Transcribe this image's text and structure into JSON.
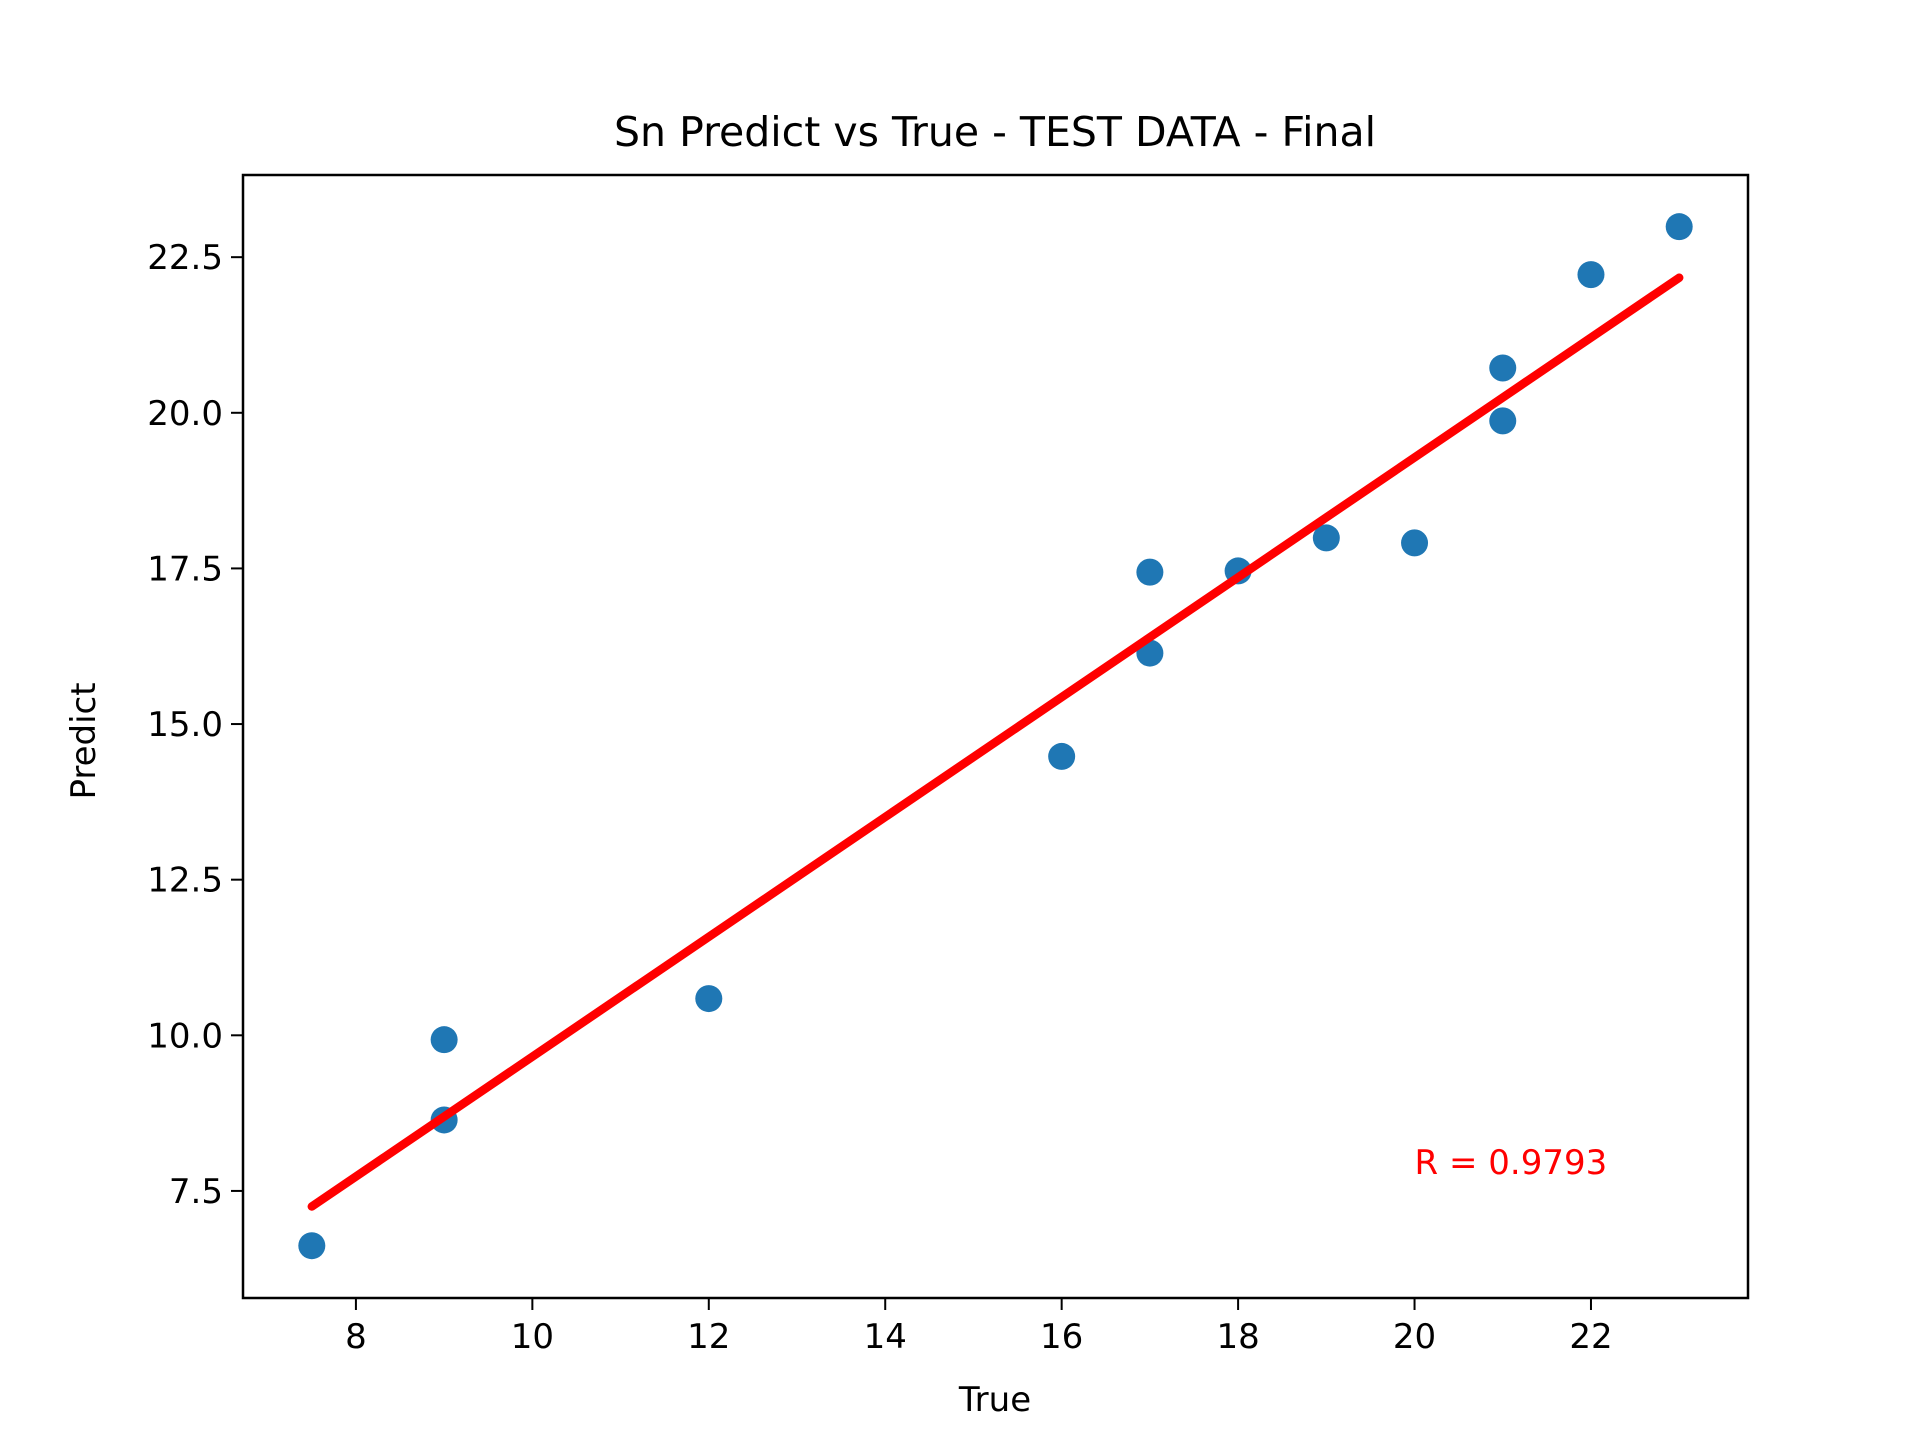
{
  "chart_data": {
    "type": "scatter",
    "title": "Sn Predict vs True - TEST DATA - Final",
    "xlabel": "True",
    "ylabel": "Predict",
    "xlim": [
      6.72,
      23.78
    ],
    "ylim": [
      5.78,
      23.82
    ],
    "xticks": [
      8,
      10,
      12,
      14,
      16,
      18,
      20,
      22
    ],
    "yticks": [
      7.5,
      10.0,
      12.5,
      15.0,
      17.5,
      20.0,
      22.5
    ],
    "xtick_labels": [
      "8",
      "10",
      "12",
      "14",
      "16",
      "18",
      "20",
      "22"
    ],
    "ytick_labels": [
      "7.5",
      "10.0",
      "12.5",
      "15.0",
      "17.5",
      "20.0",
      "22.5"
    ],
    "grid": false,
    "series": [
      {
        "kind": "scatter",
        "color": "#1f77b4",
        "points": [
          {
            "x": 7.5,
            "y": 6.62
          },
          {
            "x": 9.0,
            "y": 9.93
          },
          {
            "x": 9.0,
            "y": 8.64
          },
          {
            "x": 12.0,
            "y": 10.59
          },
          {
            "x": 16.0,
            "y": 14.48
          },
          {
            "x": 17.0,
            "y": 17.44
          },
          {
            "x": 17.0,
            "y": 16.14
          },
          {
            "x": 18.0,
            "y": 17.46
          },
          {
            "x": 19.0,
            "y": 17.99
          },
          {
            "x": 20.0,
            "y": 17.91
          },
          {
            "x": 21.0,
            "y": 20.72
          },
          {
            "x": 21.0,
            "y": 19.87
          },
          {
            "x": 22.0,
            "y": 22.22
          },
          {
            "x": 23.0,
            "y": 22.99
          }
        ]
      },
      {
        "kind": "line",
        "color": "#ff0000",
        "points": [
          {
            "x": 7.5,
            "y": 7.25
          },
          {
            "x": 23.0,
            "y": 22.17
          }
        ]
      }
    ],
    "annotations": [
      {
        "text": "R = 0.9793",
        "color": "#ff0000",
        "x": 20.0,
        "y": 7.77
      }
    ]
  }
}
